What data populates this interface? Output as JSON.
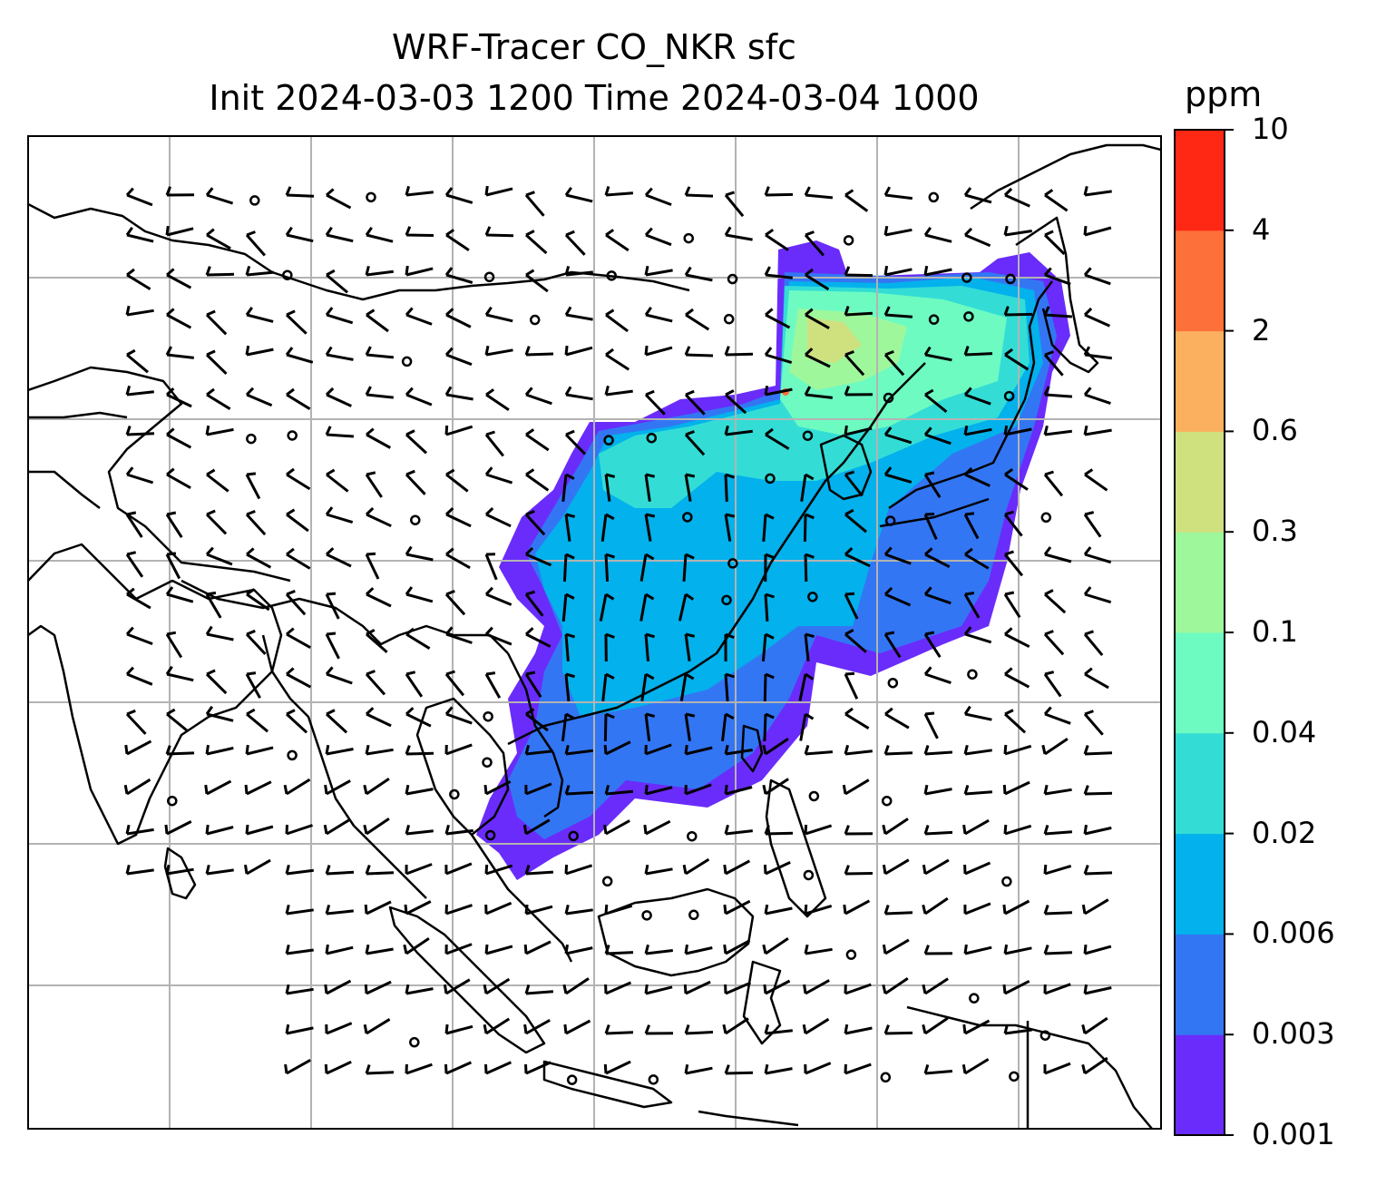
{
  "title": {
    "line1": "WRF-Tracer CO_NKR sfc",
    "line2": "Init 2024-03-03 1200 Time 2024-03-04 1000"
  },
  "colorbar": {
    "unit": "ppm",
    "ticks": [
      "0.001",
      "0.003",
      "0.006",
      "0.02",
      "0.04",
      "0.1",
      "0.3",
      "0.6",
      "2",
      "4",
      "10"
    ],
    "colors": [
      "#6a2cfb",
      "#3376f4",
      "#03b1ec",
      "#33ddd6",
      "#6dfbc2",
      "#9ff79c",
      "#cfe07f",
      "#fbb060",
      "#fe7039",
      "#fe2815"
    ]
  },
  "map": {
    "features": [
      "coastlines",
      "country-borders",
      "gridlines",
      "wind-barbs",
      "co-concentration-field"
    ]
  }
}
